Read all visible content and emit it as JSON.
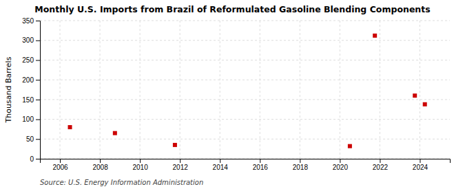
{
  "chart_data": {
    "type": "scatter",
    "title": "Monthly U.S. Imports from Brazil of Reformulated Gasoline Blending Components",
    "y_label": "Thousand Barrels",
    "source": "Source: U.S. Energy Information Administration",
    "x": [
      2006.5,
      2008.75,
      2011.75,
      2020.5,
      2021.75,
      2023.75,
      2024.25
    ],
    "values": [
      80,
      65,
      35,
      32,
      312,
      160,
      138
    ],
    "color": "#cc0000",
    "marker": "square",
    "xlim": [
      2005.0,
      2025.5
    ],
    "ylim": [
      0,
      350
    ],
    "xticks": [
      2006,
      2008,
      2010,
      2012,
      2014,
      2016,
      2018,
      2020,
      2022,
      2024
    ],
    "yticks": [
      0,
      50,
      100,
      150,
      200,
      250,
      300,
      350
    ],
    "grid": true
  }
}
